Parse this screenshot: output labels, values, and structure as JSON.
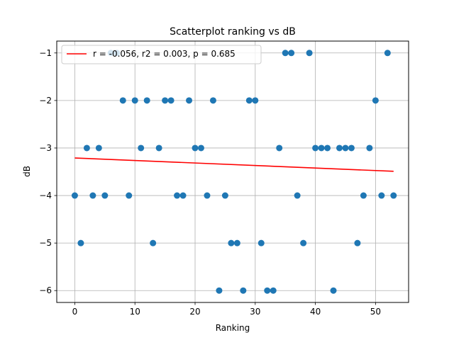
{
  "chart_data": {
    "type": "scatter",
    "title": "Scatterplot ranking vs dB",
    "xlabel": "Ranking",
    "ylabel": "dB",
    "xlim": [
      -3,
      55.5
    ],
    "ylim": [
      -6.25,
      -0.75
    ],
    "xticks": [
      0,
      10,
      20,
      30,
      40,
      50
    ],
    "yticks": [
      -1,
      -2,
      -3,
      -4,
      -5,
      -6
    ],
    "grid": true,
    "legend": {
      "placement": "top-left",
      "label": "r = -0.056, r2 = 0.003, p = 0.685"
    },
    "point_color": "#1f77b4",
    "line_color": "#ff0000",
    "points": [
      {
        "x": 0,
        "y": -4
      },
      {
        "x": 1,
        "y": -5
      },
      {
        "x": 2,
        "y": -3
      },
      {
        "x": 3,
        "y": -4
      },
      {
        "x": 4,
        "y": -3
      },
      {
        "x": 5,
        "y": -4
      },
      {
        "x": 6,
        "y": -1
      },
      {
        "x": 7,
        "y": -1
      },
      {
        "x": 8,
        "y": -2
      },
      {
        "x": 9,
        "y": -4
      },
      {
        "x": 10,
        "y": -2
      },
      {
        "x": 11,
        "y": -3
      },
      {
        "x": 12,
        "y": -2
      },
      {
        "x": 13,
        "y": -5
      },
      {
        "x": 14,
        "y": -3
      },
      {
        "x": 15,
        "y": -2
      },
      {
        "x": 16,
        "y": -2
      },
      {
        "x": 17,
        "y": -4
      },
      {
        "x": 18,
        "y": -4
      },
      {
        "x": 19,
        "y": -2
      },
      {
        "x": 20,
        "y": -3
      },
      {
        "x": 21,
        "y": -3
      },
      {
        "x": 22,
        "y": -4
      },
      {
        "x": 23,
        "y": -2
      },
      {
        "x": 24,
        "y": -6
      },
      {
        "x": 25,
        "y": -4
      },
      {
        "x": 26,
        "y": -5
      },
      {
        "x": 27,
        "y": -5
      },
      {
        "x": 28,
        "y": -6
      },
      {
        "x": 29,
        "y": -2
      },
      {
        "x": 30,
        "y": -2
      },
      {
        "x": 31,
        "y": -5
      },
      {
        "x": 32,
        "y": -6
      },
      {
        "x": 33,
        "y": -6
      },
      {
        "x": 34,
        "y": -3
      },
      {
        "x": 35,
        "y": -1
      },
      {
        "x": 36,
        "y": -1
      },
      {
        "x": 37,
        "y": -4
      },
      {
        "x": 38,
        "y": -5
      },
      {
        "x": 39,
        "y": -1
      },
      {
        "x": 40,
        "y": -3
      },
      {
        "x": 41,
        "y": -3
      },
      {
        "x": 42,
        "y": -3
      },
      {
        "x": 43,
        "y": -6
      },
      {
        "x": 44,
        "y": -3
      },
      {
        "x": 45,
        "y": -3
      },
      {
        "x": 46,
        "y": -3
      },
      {
        "x": 47,
        "y": -5
      },
      {
        "x": 48,
        "y": -4
      },
      {
        "x": 49,
        "y": -3
      },
      {
        "x": 50,
        "y": -2
      },
      {
        "x": 51,
        "y": -4
      },
      {
        "x": 52,
        "y": -1
      },
      {
        "x": 53,
        "y": -4
      }
    ],
    "regression_line": {
      "x": [
        0,
        53
      ],
      "y": [
        -3.21,
        -3.49
      ]
    }
  }
}
